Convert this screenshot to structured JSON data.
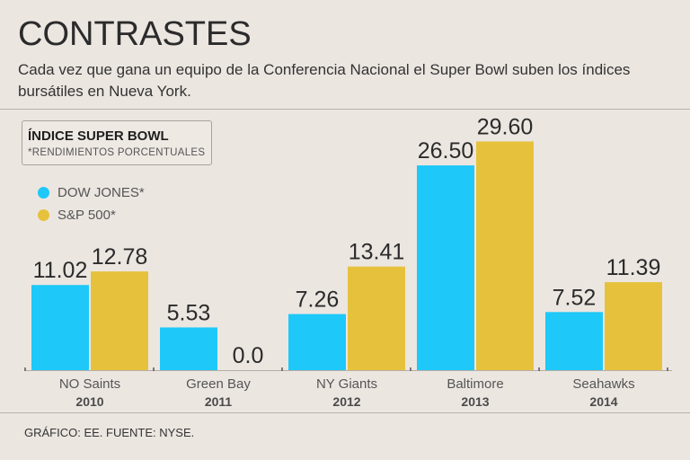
{
  "header": {
    "title": "CONTRASTES",
    "subtitle": "Cada vez que gana un equipo de la Conferencia Nacional el Super Bowl suben los índices bursátiles en Nueva York."
  },
  "legend": {
    "box_title": "ÍNDICE SUPER BOWL",
    "box_subtitle": "*RENDIMIENTOS PORCENTUALES",
    "items": [
      {
        "label": "DOW JONES*",
        "color": "#1ec8f8"
      },
      {
        "label": "S&P 500*",
        "color": "#e6c23c"
      }
    ]
  },
  "chart_data": {
    "type": "bar",
    "title": "ÍNDICE SUPER BOWL",
    "subtitle": "*RENDIMIENTOS PORCENTUALES",
    "categories": [
      "NO Saints",
      "Green Bay",
      "NY Giants",
      "Baltimore",
      "Seahawks"
    ],
    "years": [
      "2010",
      "2011",
      "2012",
      "2013",
      "2014"
    ],
    "series": [
      {
        "name": "DOW JONES*",
        "color": "#1ec8f8",
        "values": [
          11.02,
          5.53,
          7.26,
          26.5,
          7.52
        ],
        "labels": [
          "11.02",
          "5.53",
          "7.26",
          "26.50",
          "7.52"
        ]
      },
      {
        "name": "S&P 500*",
        "color": "#e6c23c",
        "values": [
          12.78,
          0.0,
          13.41,
          29.6,
          11.39
        ],
        "labels": [
          "12.78",
          "0.0",
          "13.41",
          "29.60",
          "11.39"
        ]
      }
    ],
    "ylim": [
      0,
      30
    ],
    "xlabel": "",
    "ylabel": "",
    "legend_position": "top-left"
  },
  "footer": {
    "source": "GRÁFICO: EE. FUENTE: NYSE."
  }
}
